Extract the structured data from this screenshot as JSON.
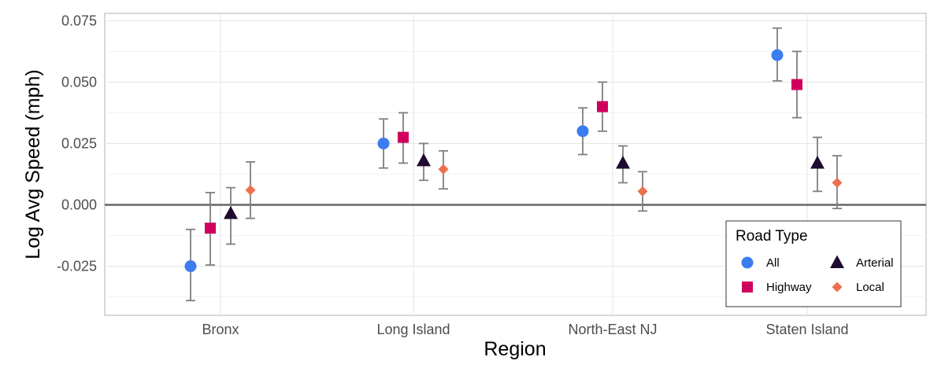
{
  "chart_data": {
    "type": "scatter",
    "title": "",
    "xlabel": "Region",
    "ylabel": "Log Avg Speed (mph)",
    "categories": [
      "Bronx",
      "Long Island",
      "North-East NJ",
      "Staten Island"
    ],
    "ylim": [
      -0.045,
      0.078
    ],
    "yticks": [
      {
        "value": 0.075,
        "label": "0.075"
      },
      {
        "value": 0.05,
        "label": "0.050"
      },
      {
        "value": 0.025,
        "label": "0.025"
      },
      {
        "value": 0.0,
        "label": "0.000"
      },
      {
        "value": -0.025,
        "label": "-0.025"
      }
    ],
    "reference_line": 0,
    "grid": true,
    "legend": {
      "title": "Road Type",
      "position": "bottom-right"
    },
    "series": [
      {
        "name": "All",
        "shape": "circle",
        "color": "#3b7cf0",
        "values": [
          -0.025,
          0.025,
          0.03,
          0.061
        ],
        "lower": [
          -0.039,
          0.015,
          0.0205,
          0.0505
        ],
        "upper": [
          -0.01,
          0.035,
          0.0395,
          0.072
        ]
      },
      {
        "name": "Highway",
        "shape": "square",
        "color": "#d0005e",
        "values": [
          -0.0095,
          0.0275,
          0.04,
          0.049
        ],
        "lower": [
          -0.0245,
          0.017,
          0.03,
          0.0355
        ],
        "upper": [
          0.005,
          0.0375,
          0.05,
          0.0625
        ]
      },
      {
        "name": "Arterial",
        "shape": "triangle",
        "color": "#1f0a30",
        "values": [
          -0.0035,
          0.018,
          0.017,
          0.017
        ],
        "lower": [
          -0.016,
          0.01,
          0.009,
          0.0055
        ],
        "upper": [
          0.007,
          0.025,
          0.024,
          0.0275
        ]
      },
      {
        "name": "Local",
        "shape": "diamond",
        "color": "#ee6f4f",
        "values": [
          0.006,
          0.0145,
          0.0055,
          0.009
        ],
        "lower": [
          -0.0055,
          0.0065,
          -0.0025,
          -0.0015
        ],
        "upper": [
          0.0175,
          0.022,
          0.0135,
          0.02
        ]
      }
    ]
  }
}
